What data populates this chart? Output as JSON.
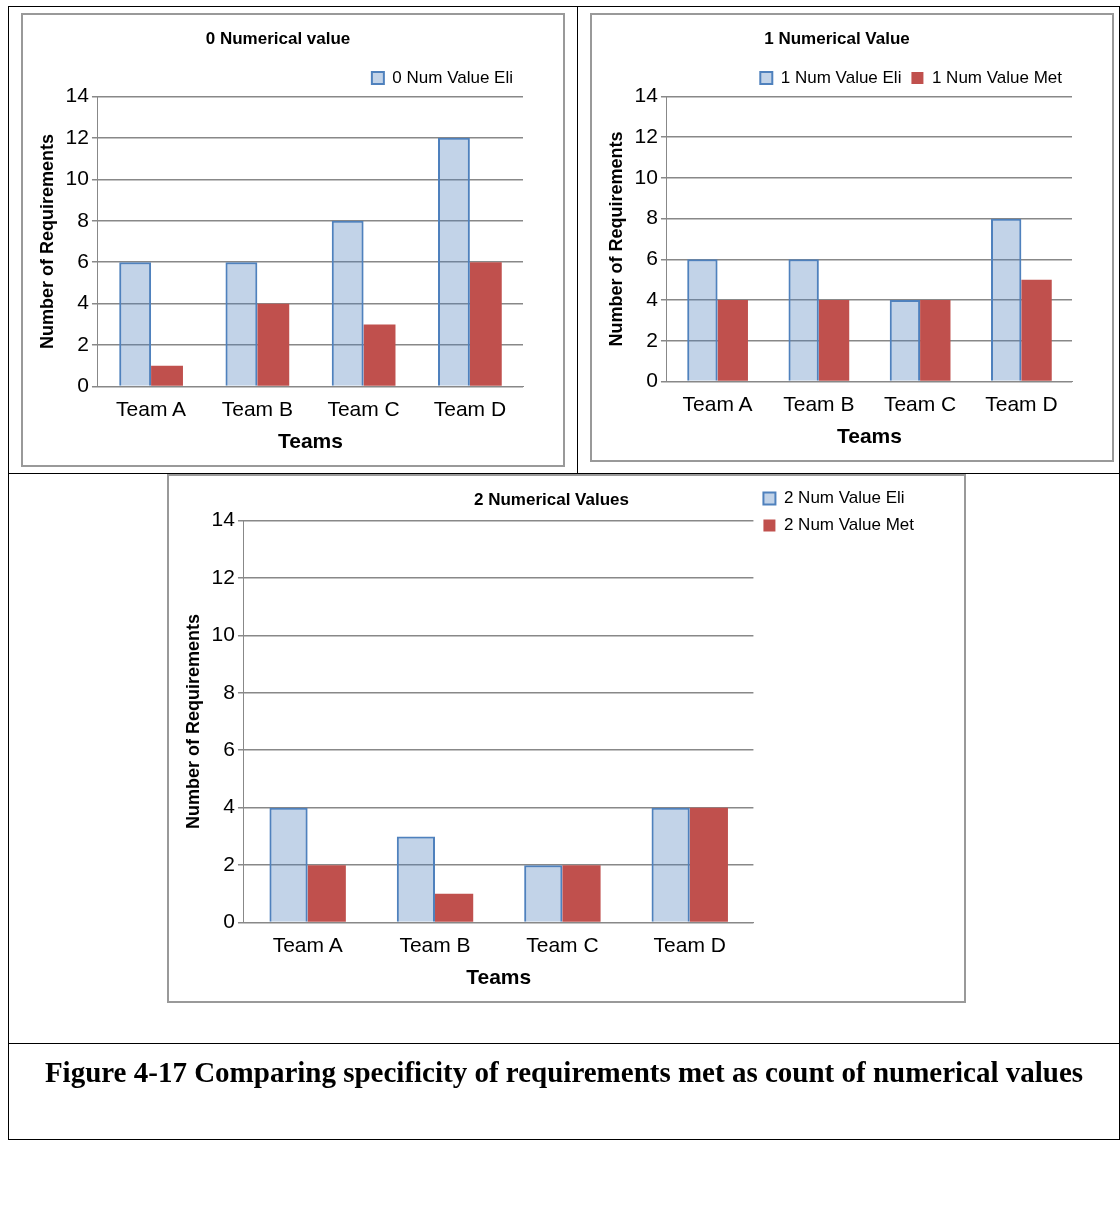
{
  "chart_data": [
    {
      "type": "bar",
      "title": "0 Numerical value",
      "xlabel": "Teams",
      "ylabel": "Number of Requirements",
      "categories": [
        "Team A",
        "Team B",
        "Team C",
        "Team D"
      ],
      "series": [
        {
          "name": "0 Num Value Eli",
          "color": "#4f81bd",
          "values": [
            6,
            6,
            8,
            12
          ]
        },
        {
          "color": "#c0504d",
          "values": [
            1,
            4,
            3,
            6
          ]
        }
      ],
      "ylim": [
        0,
        14
      ],
      "yticks": [
        0,
        2,
        4,
        6,
        8,
        10,
        12,
        14
      ],
      "grid": "y",
      "legend": "top right"
    },
    {
      "type": "bar",
      "title": "1 Numerical Value",
      "xlabel": "Teams",
      "ylabel": "Number of Requirements",
      "categories": [
        "Team A",
        "Team B",
        "Team C",
        "Team D"
      ],
      "series": [
        {
          "name": "1 Num Value Eli",
          "color": "#4f81bd",
          "values": [
            6,
            6,
            4,
            8
          ]
        },
        {
          "name": "1 Num Value Met",
          "color": "#c0504d",
          "values": [
            4,
            4,
            4,
            5
          ]
        }
      ],
      "ylim": [
        0,
        14
      ],
      "yticks": [
        0,
        2,
        4,
        6,
        8,
        10,
        12,
        14
      ],
      "grid": "y",
      "legend": "top right"
    },
    {
      "type": "bar",
      "title": "2 Numerical Values",
      "xlabel": "Teams",
      "ylabel": "Number of Requirements",
      "categories": [
        "Team A",
        "Team B",
        "Team C",
        "Team D"
      ],
      "series": [
        {
          "name": "2 Num Value Eli",
          "color": "#4f81bd",
          "values": [
            4,
            3,
            2,
            4
          ]
        },
        {
          "name": "2 Num Value Met",
          "color": "#c0504d",
          "values": [
            2,
            1,
            2,
            4
          ]
        }
      ],
      "ylim": [
        0,
        14
      ],
      "yticks": [
        0,
        2,
        4,
        6,
        8,
        10,
        12,
        14
      ],
      "grid": "y",
      "legend": "right",
      "annotations": [
        "Figure 4-17 Comparing specificity of requirements met as count of numerical values"
      ]
    }
  ]
}
